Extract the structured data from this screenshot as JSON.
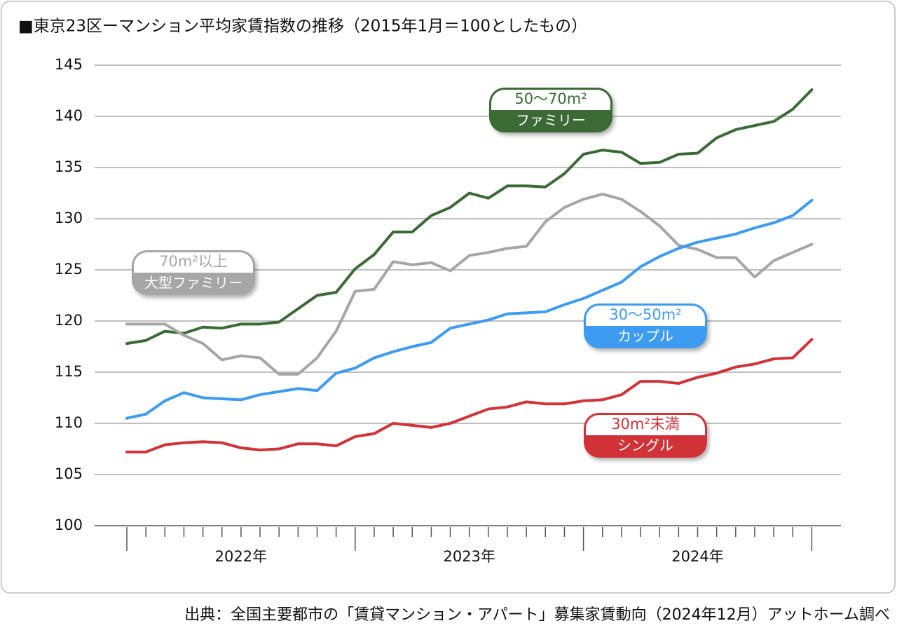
{
  "chart_data": {
    "type": "line",
    "title": "■東京23区ーマンション平均家賃指数の推移（2015年1月＝100としたもの）",
    "source": "出典：全国主要都市の「賃貸マンション・アパート」募集家賃動向（2024年12月）アットホーム調べ",
    "categories": [
      null,
      null,
      null,
      null,
      null,
      null,
      null,
      null,
      null,
      null,
      null,
      null,
      null,
      null,
      null,
      null,
      null,
      null,
      null,
      null,
      null,
      null,
      null,
      null,
      null,
      null,
      null,
      null,
      null,
      null,
      null,
      null,
      null,
      null,
      null,
      null,
      null
    ],
    "x_groups": [
      "2022年",
      "2023年",
      "2024年"
    ],
    "ylim": [
      100,
      145
    ],
    "yticks": [
      100,
      105,
      110,
      115,
      120,
      125,
      130,
      135,
      140,
      145
    ],
    "grid": true,
    "series": [
      {
        "name": "50〜70m²",
        "sublabel": "ファミリー",
        "color": "#3a6b35",
        "values": [
          117.8,
          118.1,
          119.0,
          118.8,
          119.4,
          119.3,
          119.7,
          119.7,
          119.9,
          121.2,
          122.5,
          122.8,
          125.1,
          126.5,
          128.7,
          128.7,
          130.3,
          131.1,
          132.5,
          132.0,
          133.2,
          133.2,
          133.1,
          134.4,
          136.3,
          136.7,
          136.5,
          135.4,
          135.5,
          136.3,
          136.4,
          137.9,
          138.7,
          139.1,
          139.5,
          140.7,
          142.6
        ]
      },
      {
        "name": "70m²以上",
        "sublabel": "大型ファミリー",
        "color": "#a6a6a6",
        "values": [
          119.7,
          119.7,
          119.7,
          118.6,
          117.8,
          116.2,
          116.6,
          116.4,
          114.8,
          114.8,
          116.4,
          119.0,
          122.9,
          123.1,
          125.8,
          125.5,
          125.7,
          124.9,
          126.4,
          126.7,
          127.1,
          127.3,
          129.7,
          131.1,
          131.9,
          132.4,
          131.9,
          130.7,
          129.3,
          127.4,
          127.0,
          126.2,
          126.2,
          124.3,
          125.9,
          126.7,
          127.5
        ]
      },
      {
        "name": "30〜50m²",
        "sublabel": "カップル",
        "color": "#3d9bf2",
        "values": [
          110.5,
          110.9,
          112.2,
          113.0,
          112.5,
          112.4,
          112.3,
          112.8,
          113.1,
          113.4,
          113.2,
          114.9,
          115.4,
          116.4,
          117.0,
          117.5,
          117.9,
          119.3,
          119.7,
          120.1,
          120.7,
          120.8,
          120.9,
          121.6,
          122.2,
          123.0,
          123.8,
          125.3,
          126.3,
          127.1,
          127.7,
          128.1,
          128.5,
          129.1,
          129.6,
          130.3,
          131.8
        ]
      },
      {
        "name": "30m²未満",
        "sublabel": "シングル",
        "color": "#d13338",
        "values": [
          107.2,
          107.2,
          107.9,
          108.1,
          108.2,
          108.1,
          107.6,
          107.4,
          107.5,
          108.0,
          108.0,
          107.8,
          108.7,
          109.0,
          110.0,
          109.8,
          109.6,
          110.0,
          110.7,
          111.4,
          111.6,
          112.1,
          111.9,
          111.9,
          112.2,
          112.3,
          112.8,
          114.1,
          114.1,
          113.9,
          114.5,
          114.9,
          115.5,
          115.8,
          116.3,
          116.4,
          118.2
        ]
      }
    ]
  }
}
